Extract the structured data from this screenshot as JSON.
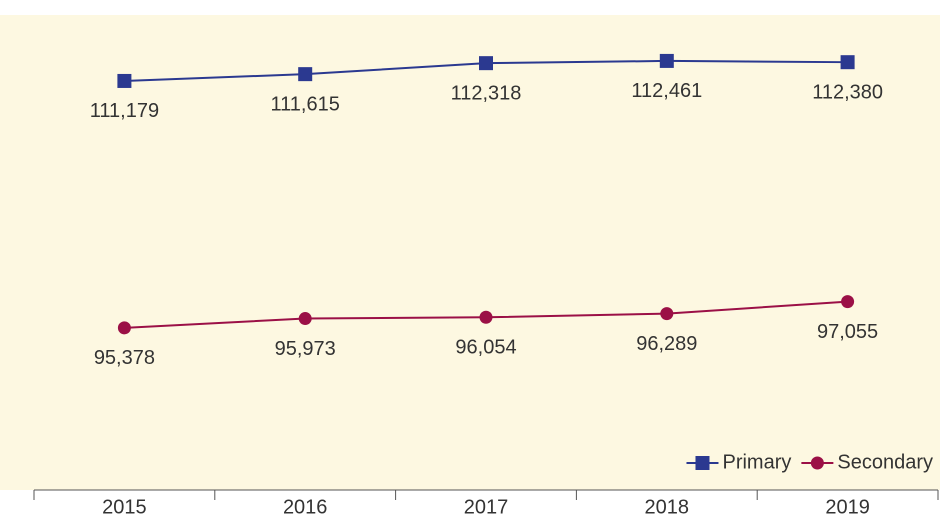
{
  "chart_data": {
    "type": "line",
    "categories": [
      "2015",
      "2016",
      "2017",
      "2018",
      "2019"
    ],
    "series": [
      {
        "name": "Primary",
        "color": "#2b3990",
        "marker": "square",
        "values": [
          111179,
          111615,
          112318,
          112461,
          112380
        ],
        "value_labels": [
          "111,179",
          "111,615",
          "112,318",
          "112,461",
          "112,380"
        ]
      },
      {
        "name": "Secondary",
        "color": "#9b1046",
        "marker": "circle",
        "values": [
          95378,
          95973,
          96054,
          96289,
          97055
        ],
        "value_labels": [
          "95,378",
          "95,973",
          "96,054",
          "96,289",
          "97,055"
        ]
      }
    ],
    "ylim": [
      85000,
      115400
    ],
    "legend": "lower right"
  }
}
